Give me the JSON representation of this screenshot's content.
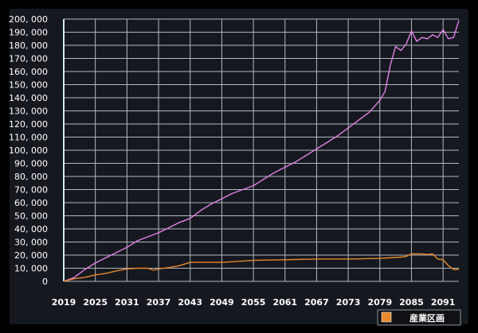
{
  "chart_data": {
    "type": "line",
    "title": "",
    "xlabel": "",
    "ylabel": "",
    "ylim": [
      0,
      200000
    ],
    "xlim": [
      2019,
      2094
    ],
    "grid": true,
    "legend_position": "bottom-right",
    "y_ticks": [
      "0",
      "10, 000",
      "20, 000",
      "30, 000",
      "40, 000",
      "50, 000",
      "60, 000",
      "70, 000",
      "80, 000",
      "90, 000",
      "100, 000",
      "110, 000",
      "120, 000",
      "130, 000",
      "140, 000",
      "150, 000",
      "160, 000",
      "170, 000",
      "180, 000",
      "190, 000",
      "200, 000"
    ],
    "x_ticks": [
      "2019",
      "2025",
      "2031",
      "2037",
      "2043",
      "2049",
      "2055",
      "2061",
      "2067",
      "2073",
      "2079",
      "2085",
      "2091"
    ],
    "legend": [
      {
        "label": "産業区画",
        "color": "#e8882a"
      }
    ],
    "series": [
      {
        "color": "#e57fe8",
        "x": [
          2019,
          2021,
          2023,
          2025,
          2027,
          2029,
          2031,
          2033,
          2035,
          2037,
          2039,
          2041,
          2043,
          2045,
          2047,
          2049,
          2051,
          2053,
          2055,
          2057,
          2059,
          2061,
          2063,
          2065,
          2067,
          2069,
          2071,
          2073,
          2075,
          2077,
          2079,
          2080,
          2081,
          2082,
          2083,
          2084,
          2085,
          2086,
          2087,
          2088,
          2089,
          2090,
          2091,
          2092,
          2093,
          2094
        ],
        "values": [
          0,
          3000,
          9000,
          14000,
          18000,
          22000,
          26000,
          31000,
          34000,
          37000,
          41000,
          45000,
          48000,
          54000,
          59000,
          63000,
          67000,
          70000,
          73000,
          78000,
          83000,
          87000,
          91000,
          96000,
          101000,
          106000,
          111000,
          117000,
          123000,
          129000,
          138000,
          145000,
          165000,
          179000,
          176000,
          181000,
          191000,
          183000,
          186000,
          185000,
          188000,
          186000,
          192000,
          185000,
          186000,
          199000
        ]
      },
      {
        "name": "産業区画",
        "color": "#e8882a",
        "x": [
          2019,
          2021,
          2023,
          2025,
          2027,
          2029,
          2031,
          2033,
          2035,
          2036,
          2037,
          2039,
          2041,
          2043,
          2045,
          2049,
          2051,
          2053,
          2055,
          2061,
          2067,
          2073,
          2079,
          2083,
          2084,
          2085,
          2087,
          2088,
          2089,
          2090,
          2091,
          2092,
          2093,
          2094
        ],
        "values": [
          0,
          2000,
          3000,
          5000,
          6000,
          8000,
          9500,
          10000,
          10000,
          8500,
          9500,
          10500,
          12000,
          14500,
          14500,
          14500,
          15000,
          15500,
          16000,
          16500,
          17000,
          17000,
          17500,
          18500,
          19000,
          21000,
          21000,
          20500,
          21000,
          17000,
          16500,
          12000,
          9000,
          9000
        ]
      }
    ]
  }
}
